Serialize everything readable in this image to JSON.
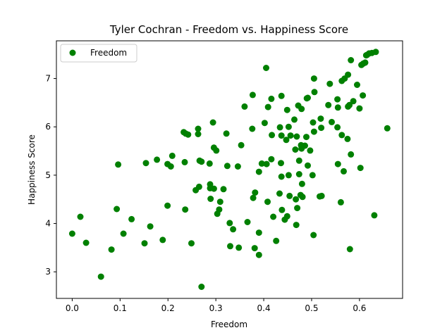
{
  "chart_data": {
    "type": "scatter",
    "title": "Tyler Cochran - Freedom vs. Happiness Score",
    "xlabel": "Freedom",
    "ylabel": "Happiness Score",
    "xlim": [
      -0.033,
      0.69
    ],
    "ylim": [
      2.45,
      7.78
    ],
    "xticks": [
      0.0,
      0.1,
      0.2,
      0.3,
      0.4,
      0.5,
      0.6
    ],
    "xtick_labels": [
      "0.0",
      "0.1",
      "0.2",
      "0.3",
      "0.4",
      "0.5",
      "0.6"
    ],
    "yticks": [
      3,
      4,
      5,
      6,
      7
    ],
    "ytick_labels": [
      "3",
      "4",
      "5",
      "6",
      "7"
    ],
    "legend_position": "top-left",
    "grid": false,
    "series": [
      {
        "name": "Freedom",
        "color": "#008000",
        "points": [
          [
            0.634,
            7.55
          ],
          [
            0.626,
            7.53
          ],
          [
            0.62,
            7.52
          ],
          [
            0.616,
            7.49
          ],
          [
            0.614,
            7.48
          ],
          [
            0.612,
            7.33
          ],
          [
            0.608,
            7.31
          ],
          [
            0.604,
            7.28
          ],
          [
            0.582,
            7.38
          ],
          [
            0.576,
            7.08
          ],
          [
            0.569,
            7.0
          ],
          [
            0.563,
            6.95
          ],
          [
            0.595,
            6.87
          ],
          [
            0.607,
            6.65
          ],
          [
            0.587,
            6.53
          ],
          [
            0.579,
            6.45
          ],
          [
            0.576,
            6.42
          ],
          [
            0.6,
            6.38
          ],
          [
            0.405,
            7.22
          ],
          [
            0.505,
            7.0
          ],
          [
            0.538,
            6.89
          ],
          [
            0.506,
            6.72
          ],
          [
            0.492,
            6.6
          ],
          [
            0.49,
            6.59
          ],
          [
            0.437,
            6.64
          ],
          [
            0.377,
            6.66
          ],
          [
            0.416,
            6.58
          ],
          [
            0.36,
            6.42
          ],
          [
            0.472,
            6.44
          ],
          [
            0.479,
            6.37
          ],
          [
            0.409,
            6.41
          ],
          [
            0.449,
            6.35
          ],
          [
            0.554,
            6.57
          ],
          [
            0.535,
            6.45
          ],
          [
            0.555,
            6.4
          ],
          [
            0.519,
            6.17
          ],
          [
            0.542,
            6.1
          ],
          [
            0.554,
            5.99
          ],
          [
            0.52,
            5.98
          ],
          [
            0.503,
            6.09
          ],
          [
            0.464,
            6.15
          ],
          [
            0.452,
            6.0
          ],
          [
            0.434,
            5.99
          ],
          [
            0.402,
            6.08
          ],
          [
            0.376,
            5.96
          ],
          [
            0.294,
            6.09
          ],
          [
            0.263,
            5.96
          ],
          [
            0.233,
            5.89
          ],
          [
            0.237,
            5.86
          ],
          [
            0.242,
            5.84
          ],
          [
            0.263,
            5.85
          ],
          [
            0.322,
            5.86
          ],
          [
            0.417,
            5.83
          ],
          [
            0.437,
            5.82
          ],
          [
            0.456,
            5.82
          ],
          [
            0.469,
            5.8
          ],
          [
            0.489,
            5.79
          ],
          [
            0.505,
            5.9
          ],
          [
            0.563,
            5.83
          ],
          [
            0.575,
            5.75
          ],
          [
            0.658,
            5.97
          ],
          [
            0.353,
            5.62
          ],
          [
            0.447,
            5.73
          ],
          [
            0.478,
            5.62
          ],
          [
            0.486,
            5.61
          ],
          [
            0.466,
            5.53
          ],
          [
            0.479,
            5.55
          ],
          [
            0.497,
            5.51
          ],
          [
            0.296,
            5.57
          ],
          [
            0.301,
            5.51
          ],
          [
            0.582,
            5.43
          ],
          [
            0.209,
            5.4
          ],
          [
            0.177,
            5.32
          ],
          [
            0.416,
            5.33
          ],
          [
            0.266,
            5.3
          ],
          [
            0.27,
            5.28
          ],
          [
            0.235,
            5.27
          ],
          [
            0.287,
            5.24
          ],
          [
            0.096,
            5.22
          ],
          [
            0.154,
            5.25
          ],
          [
            0.199,
            5.23
          ],
          [
            0.206,
            5.18
          ],
          [
            0.324,
            5.19
          ],
          [
            0.346,
            5.18
          ],
          [
            0.396,
            5.24
          ],
          [
            0.406,
            5.23
          ],
          [
            0.436,
            5.25
          ],
          [
            0.474,
            5.3
          ],
          [
            0.492,
            5.2
          ],
          [
            0.555,
            5.23
          ],
          [
            0.567,
            5.08
          ],
          [
            0.602,
            5.15
          ],
          [
            0.39,
            5.07
          ],
          [
            0.437,
            4.97
          ],
          [
            0.452,
            5.0
          ],
          [
            0.474,
            5.02
          ],
          [
            0.502,
            5.0
          ],
          [
            0.48,
            4.82
          ],
          [
            0.288,
            4.81
          ],
          [
            0.265,
            4.76
          ],
          [
            0.258,
            4.69
          ],
          [
            0.288,
            4.73
          ],
          [
            0.296,
            4.72
          ],
          [
            0.316,
            4.71
          ],
          [
            0.382,
            4.64
          ],
          [
            0.378,
            4.53
          ],
          [
            0.408,
            4.45
          ],
          [
            0.433,
            4.62
          ],
          [
            0.454,
            4.57
          ],
          [
            0.467,
            4.5
          ],
          [
            0.477,
            4.59
          ],
          [
            0.481,
            4.55
          ],
          [
            0.517,
            4.56
          ],
          [
            0.521,
            4.57
          ],
          [
            0.561,
            4.44
          ],
          [
            0.199,
            4.37
          ],
          [
            0.289,
            4.51
          ],
          [
            0.309,
            4.45
          ],
          [
            0.307,
            4.29
          ],
          [
            0.236,
            4.29
          ],
          [
            0.093,
            4.3
          ],
          [
            0.017,
            4.14
          ],
          [
            0.124,
            4.09
          ],
          [
            0.303,
            4.2
          ],
          [
            0.329,
            4.01
          ],
          [
            0.336,
            3.88
          ],
          [
            0.366,
            4.03
          ],
          [
            0.42,
            4.14
          ],
          [
            0.438,
            4.28
          ],
          [
            0.444,
            4.08
          ],
          [
            0.449,
            4.15
          ],
          [
            0.47,
            4.32
          ],
          [
            0.468,
            3.97
          ],
          [
            0.0,
            3.79
          ],
          [
            0.029,
            3.6
          ],
          [
            0.107,
            3.79
          ],
          [
            0.163,
            3.94
          ],
          [
            0.189,
            3.66
          ],
          [
            0.151,
            3.59
          ],
          [
            0.249,
            3.59
          ],
          [
            0.39,
            3.81
          ],
          [
            0.33,
            3.53
          ],
          [
            0.348,
            3.5
          ],
          [
            0.381,
            3.49
          ],
          [
            0.426,
            3.64
          ],
          [
            0.504,
            3.76
          ],
          [
            0.58,
            3.47
          ],
          [
            0.631,
            4.17
          ],
          [
            0.082,
            3.46
          ],
          [
            0.39,
            3.35
          ],
          [
            0.06,
            2.9
          ],
          [
            0.27,
            2.69
          ]
        ]
      }
    ]
  }
}
